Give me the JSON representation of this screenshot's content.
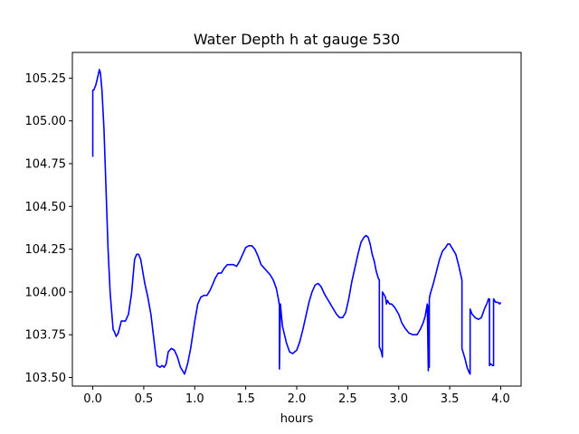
{
  "chart_data": {
    "type": "line",
    "title": "Water Depth h at gauge 530",
    "xlabel": "hours",
    "ylabel": "",
    "xlim": [
      -0.2,
      4.2
    ],
    "ylim": [
      103.45,
      105.4
    ],
    "xticks": [
      0.0,
      0.5,
      1.0,
      1.5,
      2.0,
      2.5,
      3.0,
      3.5,
      4.0
    ],
    "xtick_labels": [
      "0.0",
      "0.5",
      "1.0",
      "1.5",
      "2.0",
      "2.5",
      "3.0",
      "3.5",
      "4.0"
    ],
    "yticks": [
      103.5,
      103.75,
      104.0,
      104.25,
      104.5,
      104.75,
      105.0,
      105.25
    ],
    "ytick_labels": [
      "103.50",
      "103.75",
      "104.00",
      "104.25",
      "104.50",
      "104.75",
      "105.00",
      "105.25"
    ],
    "grid": false,
    "line_color": "#0000ff",
    "series": [
      {
        "x": [
          0.0,
          0.0,
          0.01,
          0.03,
          0.05,
          0.065,
          0.075,
          0.09,
          0.11,
          0.13,
          0.15,
          0.17,
          0.19,
          0.2,
          0.21,
          0.23,
          0.25,
          0.28,
          0.32,
          0.35,
          0.38,
          0.41,
          0.43,
          0.45,
          0.47,
          0.49,
          0.51,
          0.54,
          0.57,
          0.6,
          0.63,
          0.66,
          0.68,
          0.7,
          0.72,
          0.74,
          0.77,
          0.8,
          0.83,
          0.86,
          0.9,
          0.93,
          0.96,
          1.0,
          1.03,
          1.06,
          1.09,
          1.12,
          1.15,
          1.18,
          1.2,
          1.23,
          1.26,
          1.29,
          1.32,
          1.35,
          1.38,
          1.41,
          1.44,
          1.47,
          1.5,
          1.53,
          1.56,
          1.59,
          1.62,
          1.65,
          1.68,
          1.71,
          1.74,
          1.77,
          1.8,
          1.82,
          1.83,
          1.83,
          1.84,
          1.86,
          1.88,
          1.9,
          1.93,
          1.96,
          2.0,
          2.03,
          2.06,
          2.09,
          2.12,
          2.15,
          2.18,
          2.21,
          2.24,
          2.27,
          2.3,
          2.33,
          2.36,
          2.39,
          2.42,
          2.45,
          2.48,
          2.51,
          2.54,
          2.57,
          2.6,
          2.63,
          2.66,
          2.68,
          2.7,
          2.72,
          2.74,
          2.76,
          2.78,
          2.8,
          2.81,
          2.81,
          2.83,
          2.84,
          2.84,
          2.86,
          2.87,
          2.88,
          2.89,
          2.91,
          2.93,
          2.96,
          3.0,
          3.03,
          3.06,
          3.1,
          3.14,
          3.18,
          3.21,
          3.24,
          3.26,
          3.28,
          3.29,
          3.29,
          3.3,
          3.3,
          3.31,
          3.34,
          3.37,
          3.4,
          3.43,
          3.46,
          3.48,
          3.5,
          3.53,
          3.56,
          3.59,
          3.62,
          3.62,
          3.65,
          3.67,
          3.69,
          3.7,
          3.7,
          3.72,
          3.75,
          3.78,
          3.81,
          3.84,
          3.87,
          3.88,
          3.89,
          3.89,
          3.9,
          3.92,
          3.93,
          3.93,
          3.95,
          3.97,
          3.99,
          4.0
        ],
        "y": [
          104.79,
          105.18,
          105.18,
          105.21,
          105.26,
          105.3,
          105.28,
          105.18,
          104.95,
          104.6,
          104.25,
          104.0,
          103.85,
          103.78,
          103.77,
          103.74,
          103.76,
          103.83,
          103.83,
          103.87,
          103.99,
          104.19,
          104.22,
          104.22,
          104.19,
          104.12,
          104.05,
          103.97,
          103.87,
          103.72,
          103.57,
          103.56,
          103.57,
          103.56,
          103.58,
          103.65,
          103.67,
          103.66,
          103.62,
          103.56,
          103.52,
          103.58,
          103.67,
          103.83,
          103.93,
          103.97,
          103.98,
          103.98,
          104.01,
          104.05,
          104.08,
          104.11,
          104.11,
          104.14,
          104.16,
          104.16,
          104.16,
          104.15,
          104.18,
          104.22,
          104.26,
          104.27,
          104.27,
          104.25,
          104.21,
          104.16,
          104.14,
          104.12,
          104.1,
          104.07,
          104.02,
          103.96,
          103.92,
          103.55,
          103.93,
          103.8,
          103.75,
          103.7,
          103.65,
          103.64,
          103.66,
          103.71,
          103.78,
          103.86,
          103.94,
          104.0,
          104.04,
          104.05,
          104.03,
          103.99,
          103.96,
          103.93,
          103.9,
          103.87,
          103.85,
          103.85,
          103.88,
          103.96,
          104.06,
          104.14,
          104.22,
          104.29,
          104.32,
          104.33,
          104.32,
          104.28,
          104.22,
          104.18,
          104.12,
          104.08,
          104.07,
          103.68,
          103.65,
          103.62,
          104.0,
          103.98,
          103.97,
          103.93,
          103.95,
          103.93,
          103.93,
          103.91,
          103.87,
          103.82,
          103.79,
          103.76,
          103.75,
          103.75,
          103.78,
          103.82,
          103.86,
          103.93,
          103.54,
          103.92,
          103.56,
          103.96,
          103.99,
          104.05,
          104.12,
          104.19,
          104.24,
          104.26,
          104.28,
          104.28,
          104.25,
          104.22,
          104.15,
          104.07,
          103.67,
          103.61,
          103.56,
          103.53,
          103.52,
          103.9,
          103.87,
          103.85,
          103.84,
          103.85,
          103.9,
          103.94,
          103.96,
          103.96,
          103.57,
          103.58,
          103.57,
          103.57,
          103.96,
          103.94,
          103.94,
          103.93,
          103.94
        ]
      }
    ]
  }
}
